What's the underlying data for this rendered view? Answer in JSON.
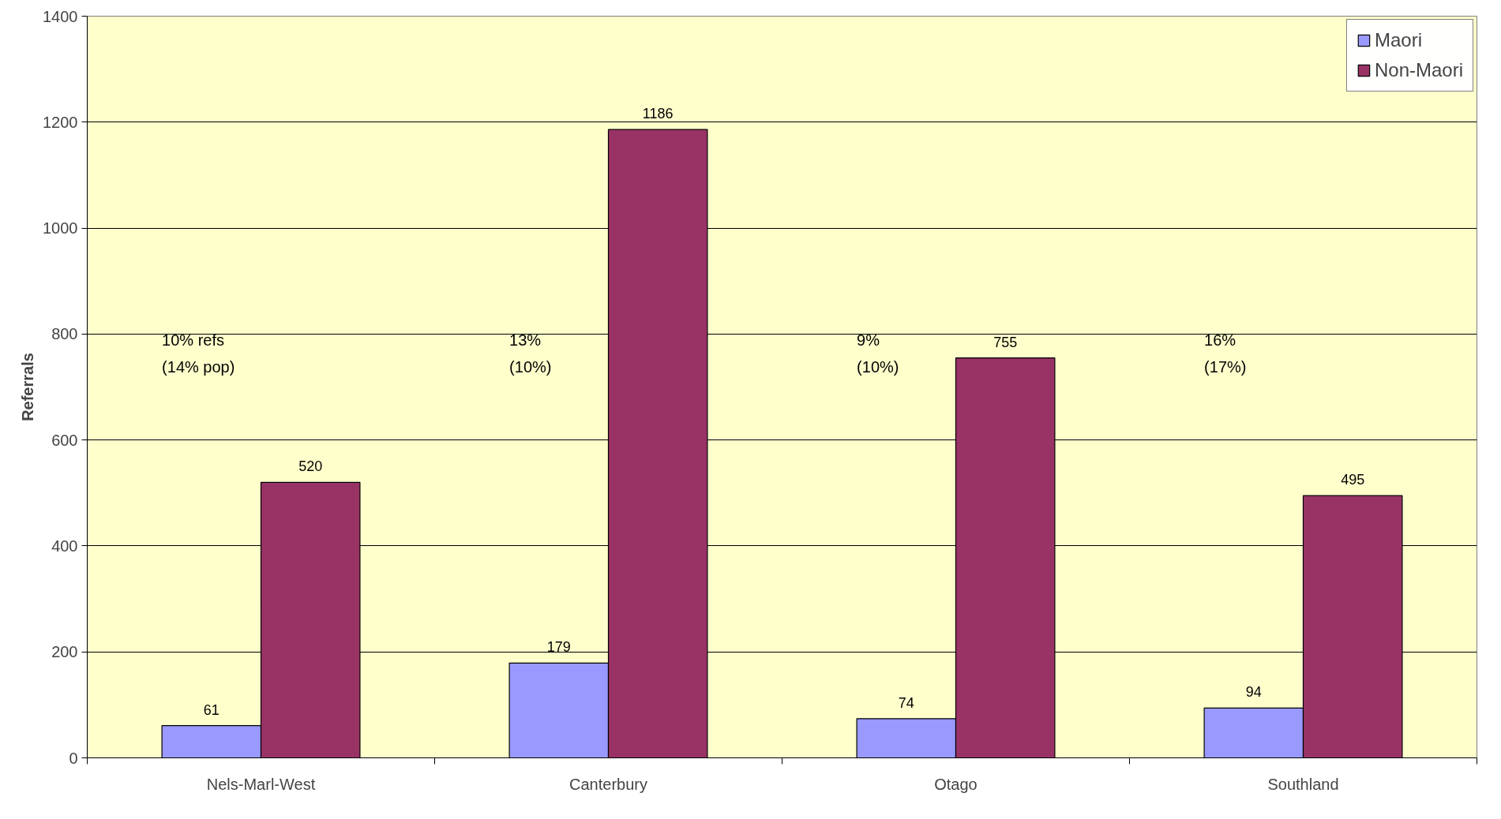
{
  "chart_data": {
    "type": "bar",
    "ylabel": "Referrals",
    "categories": [
      "Nels-Marl-West",
      "Canterbury",
      "Otago",
      "Southland"
    ],
    "series": [
      {
        "name": "Maori",
        "color": "#9999ff",
        "values": [
          61,
          179,
          74,
          94
        ]
      },
      {
        "name": "Non-Maori",
        "color": "#993366",
        "values": [
          520,
          1186,
          755,
          495
        ]
      }
    ],
    "ylim": [
      0,
      1400
    ],
    "yticks": [
      0,
      200,
      400,
      600,
      800,
      1000,
      1200,
      1400
    ],
    "data_labels": true,
    "grid": "y",
    "legend": "top right",
    "annotations": [
      "10% refs\n(14% pop)",
      "13%\n(10%)",
      "9%\n(10%)",
      "16%\n(17%)"
    ]
  }
}
